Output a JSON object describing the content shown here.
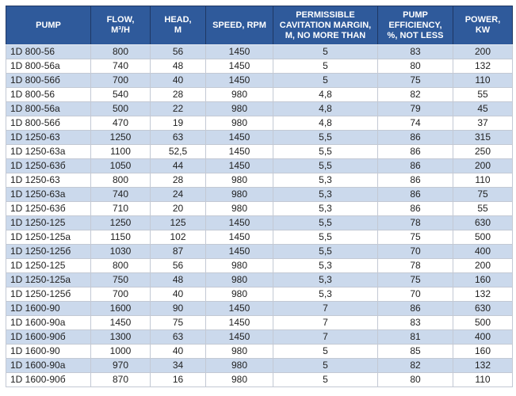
{
  "colors": {
    "header_bg": "#2F5A9B",
    "header_text": "#FFFFFF",
    "header_border": "#1F3864",
    "row_stripe": "#CBD9EC",
    "row_white": "#FFFFFF",
    "cell_border": "#C3C9D4",
    "body_text": "#1F1F1F"
  },
  "table": {
    "columns": [
      "PUMP",
      "FLOW,\nM³/H",
      "HEAD,\nM",
      "SPEED, RPM",
      "PERMISSIBLE\nCAVITATION MARGIN,\nM, NO MORE THAN",
      "PUMP\nEFFICIENCY,\n%, NOT LESS",
      "POWER,\nKW"
    ],
    "rows": [
      [
        "1D 800-56",
        "800",
        "56",
        "1450",
        "5",
        "83",
        "200"
      ],
      [
        "1D 800-56a",
        "740",
        "48",
        "1450",
        "5",
        "80",
        "132"
      ],
      [
        "1D 800-56б",
        "700",
        "40",
        "1450",
        "5",
        "75",
        "110"
      ],
      [
        "1D 800-56",
        "540",
        "28",
        "980",
        "4,8",
        "82",
        "55"
      ],
      [
        "1D 800-56a",
        "500",
        "22",
        "980",
        "4,8",
        "79",
        "45"
      ],
      [
        "1D 800-56б",
        "470",
        "19",
        "980",
        "4,8",
        "74",
        "37"
      ],
      [
        "1D 1250-63",
        "1250",
        "63",
        "1450",
        "5,5",
        "86",
        "315"
      ],
      [
        "1D 1250-63a",
        "1100",
        "52,5",
        "1450",
        "5,5",
        "86",
        "250"
      ],
      [
        "1D 1250-63б",
        "1050",
        "44",
        "1450",
        "5,5",
        "86",
        "200"
      ],
      [
        "1D 1250-63",
        "800",
        "28",
        "980",
        "5,3",
        "86",
        "110"
      ],
      [
        "1D 1250-63a",
        "740",
        "24",
        "980",
        "5,3",
        "86",
        "75"
      ],
      [
        "1D 1250-63б",
        "710",
        "20",
        "980",
        "5,3",
        "86",
        "55"
      ],
      [
        "1D 1250-125",
        "1250",
        "125",
        "1450",
        "5,5",
        "78",
        "630"
      ],
      [
        "1D 1250-125a",
        "1150",
        "102",
        "1450",
        "5,5",
        "75",
        "500"
      ],
      [
        "1D 1250-125б",
        "1030",
        "87",
        "1450",
        "5,5",
        "70",
        "400"
      ],
      [
        "1D 1250-125",
        "800",
        "56",
        "980",
        "5,3",
        "78",
        "200"
      ],
      [
        "1D 1250-125a",
        "750",
        "48",
        "980",
        "5,3",
        "75",
        "160"
      ],
      [
        "1D 1250-125б",
        "700",
        "40",
        "980",
        "5,3",
        "70",
        "132"
      ],
      [
        "1D 1600-90",
        "1600",
        "90",
        "1450",
        "7",
        "86",
        "630"
      ],
      [
        "1D 1600-90a",
        "1450",
        "75",
        "1450",
        "7",
        "83",
        "500"
      ],
      [
        "1D 1600-90б",
        "1300",
        "63",
        "1450",
        "7",
        "81",
        "400"
      ],
      [
        "1D 1600-90",
        "1000",
        "40",
        "980",
        "5",
        "85",
        "160"
      ],
      [
        "1D 1600-90a",
        "970",
        "34",
        "980",
        "5",
        "82",
        "132"
      ],
      [
        "1D 1600-90б",
        "870",
        "16",
        "980",
        "5",
        "80",
        "110"
      ]
    ]
  }
}
